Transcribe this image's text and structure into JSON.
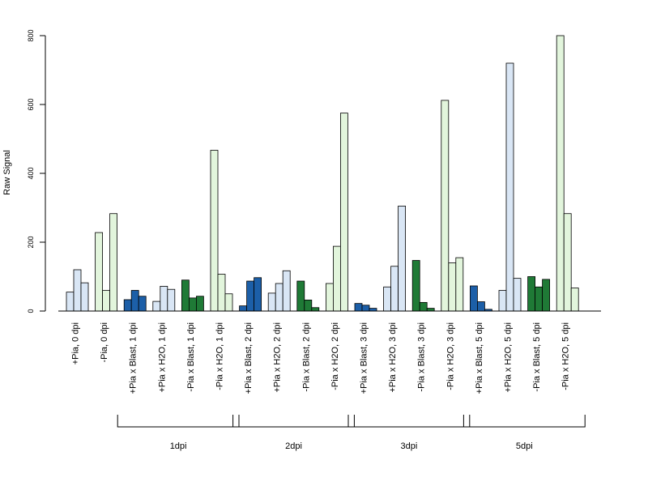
{
  "chart_data": {
    "type": "bar",
    "ylabel": "Raw Signal",
    "ylim": [
      0,
      800
    ],
    "yticks": [
      0,
      200,
      400,
      600,
      800
    ],
    "grid": false,
    "legend": "none",
    "categories": [
      "+Pia, 0 dpi",
      "-Pia, 0 dpi",
      "+Pia x Blast, 1 dpi",
      "+Pia x H2O, 1 dpi",
      "-Pia x Blast, 1 dpi",
      "-Pia x H2O, 1 dpi",
      "+Pia x Blast, 2 dpi",
      "+Pia x H2O, 2 dpi",
      "-Pia x Blast, 2 dpi",
      "-Pia x H2O, 2 dpi",
      "+Pia x Blast, 3 dpi",
      "+Pia x H2O, 3 dpi",
      "-Pia x Blast, 3 dpi",
      "-Pia x H2O, 3 dpi",
      "+Pia x Blast, 5 dpi",
      "+Pia x H2O, 5 dpi",
      "-Pia x Blast, 5 dpi",
      "-Pia x H2O, 5 dpi"
    ],
    "values": [
      [
        55,
        120,
        82
      ],
      [
        228,
        60,
        283
      ],
      [
        33,
        60,
        43
      ],
      [
        28,
        72,
        63
      ],
      [
        90,
        38,
        43
      ],
      [
        467,
        107,
        50
      ],
      [
        15,
        87,
        97
      ],
      [
        52,
        80,
        117
      ],
      [
        87,
        32,
        10
      ],
      [
        80,
        188,
        575
      ],
      [
        22,
        17,
        8
      ],
      [
        70,
        130,
        305
      ],
      [
        147,
        25,
        8
      ],
      [
        612,
        140,
        155
      ],
      [
        73,
        27,
        5
      ],
      [
        60,
        720,
        95
      ],
      [
        100,
        70,
        92
      ],
      [
        800,
        283,
        67
      ]
    ],
    "category_colors": [
      "#d9e6f5",
      "#e2f5dc",
      "#1c5fa8",
      "#d9e6f5",
      "#1f7a36",
      "#e2f5dc",
      "#1c5fa8",
      "#d9e6f5",
      "#1f7a36",
      "#e2f5dc",
      "#1c5fa8",
      "#d9e6f5",
      "#1f7a36",
      "#e2f5dc",
      "#1c5fa8",
      "#d9e6f5",
      "#1f7a36",
      "#e2f5dc"
    ],
    "groups": [
      {
        "label": "1dpi",
        "from": 2,
        "to": 5
      },
      {
        "label": "2dpi",
        "from": 6,
        "to": 9
      },
      {
        "label": "3dpi",
        "from": 10,
        "to": 13
      },
      {
        "label": "5dpi",
        "from": 14,
        "to": 17
      }
    ]
  }
}
